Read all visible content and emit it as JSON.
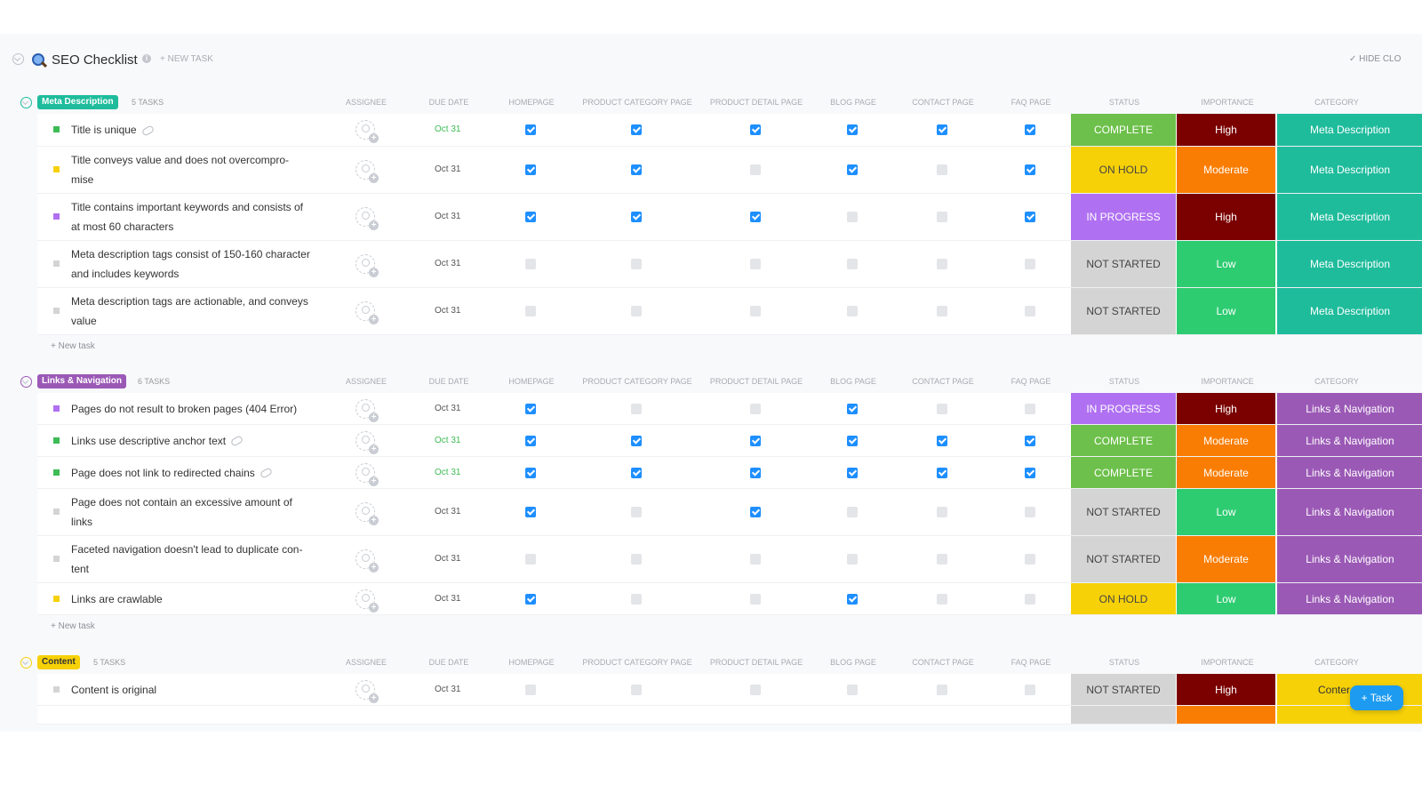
{
  "app": {
    "title": "SEO Checklist",
    "new_task": "+ NEW TASK",
    "hide_closed": "✓ HIDE CLO",
    "info": "i"
  },
  "columns": [
    "ASSIGNEE",
    "DUE DATE",
    "HOMEPAGE",
    "PRODUCT CATEGORY PAGE",
    "PRODUCT DETAIL PAGE",
    "BLOG PAGE",
    "CONTACT PAGE",
    "FAQ PAGE",
    "STATUS",
    "IMPORTANCE",
    "CATEGORY"
  ],
  "colors": {
    "complete": "#6dc04b",
    "on_hold": "#f6d108",
    "in_progress": "#b070f2",
    "not_started": "#d4d4d4",
    "high": "#7b0000",
    "moderate": "#fa7d03",
    "low": "#2ecc71",
    "meta": "#1fbc9c",
    "links": "#9b59b6",
    "content": "#f6d108"
  },
  "groups": [
    {
      "name": "Meta Description",
      "count": "5 TASKS",
      "color": "#1fbc9c",
      "tasks": [
        {
          "l1": "Title is unique",
          "l2": "",
          "clip": true,
          "due": "Oct 31",
          "due_green": true,
          "checks": [
            1,
            1,
            1,
            1,
            1,
            1
          ],
          "status": "COMPLETE",
          "status_key": "complete",
          "importance": "High",
          "imp_key": "high",
          "category": "Meta Description",
          "dot": "#3dbb56"
        },
        {
          "l1": "Title conveys value and does not overcompro-",
          "l2": "mise",
          "clip": false,
          "due": "Oct 31",
          "due_green": false,
          "checks": [
            1,
            1,
            0,
            1,
            0,
            1
          ],
          "status": "ON HOLD",
          "status_key": "on_hold",
          "importance": "Moderate",
          "imp_key": "moderate",
          "category": "Meta Description",
          "dot": "#f6d108"
        },
        {
          "l1": "Title contains important keywords and consists of",
          "l2": "at most 60 characters",
          "clip": false,
          "due": "Oct 31",
          "due_green": false,
          "checks": [
            1,
            1,
            1,
            0,
            0,
            1
          ],
          "status": "IN PROGRESS",
          "status_key": "in_progress",
          "importance": "High",
          "imp_key": "high",
          "category": "Meta Description",
          "dot": "#b070f2"
        },
        {
          "l1": "Meta description tags consist of 150-160 character",
          "l2": "and includes keywords",
          "clip": false,
          "due": "Oct 31",
          "due_green": false,
          "checks": [
            0,
            0,
            0,
            0,
            0,
            0
          ],
          "status": "NOT STARTED",
          "status_key": "not_started",
          "importance": "Low",
          "imp_key": "low",
          "category": "Meta Description",
          "dot": "#d4d4d4"
        },
        {
          "l1": "Meta description tags are actionable, and conveys",
          "l2": "value",
          "clip": false,
          "due": "Oct 31",
          "due_green": false,
          "checks": [
            0,
            0,
            0,
            0,
            0,
            0
          ],
          "status": "NOT STARTED",
          "status_key": "not_started",
          "importance": "Low",
          "imp_key": "low",
          "category": "Meta Description",
          "dot": "#d4d4d4"
        }
      ],
      "new_task": "+ New task"
    },
    {
      "name": "Links & Navigation",
      "count": "6 TASKS",
      "color": "#9b59b6",
      "tasks": [
        {
          "l1": "Pages do not result to broken pages (404 Error)",
          "l2": "",
          "clip": false,
          "due": "Oct 31",
          "due_green": false,
          "checks": [
            1,
            0,
            0,
            1,
            0,
            0
          ],
          "status": "IN PROGRESS",
          "status_key": "in_progress",
          "importance": "High",
          "imp_key": "high",
          "category": "Links & Navigation",
          "dot": "#b070f2"
        },
        {
          "l1": "Links use descriptive anchor text",
          "l2": "",
          "clip": true,
          "due": "Oct 31",
          "due_green": true,
          "checks": [
            1,
            1,
            1,
            1,
            1,
            1
          ],
          "status": "COMPLETE",
          "status_key": "complete",
          "importance": "Moderate",
          "imp_key": "moderate",
          "category": "Links & Navigation",
          "dot": "#3dbb56"
        },
        {
          "l1": "Page does not link to redirected chains",
          "l2": "",
          "clip": true,
          "due": "Oct 31",
          "due_green": true,
          "checks": [
            1,
            1,
            1,
            1,
            1,
            1
          ],
          "status": "COMPLETE",
          "status_key": "complete",
          "importance": "Moderate",
          "imp_key": "moderate",
          "category": "Links & Navigation",
          "dot": "#3dbb56"
        },
        {
          "l1": "Page does not contain an excessive amount of",
          "l2": "links",
          "clip": false,
          "due": "Oct 31",
          "due_green": false,
          "checks": [
            1,
            0,
            1,
            0,
            0,
            0
          ],
          "status": "NOT STARTED",
          "status_key": "not_started",
          "importance": "Low",
          "imp_key": "low",
          "category": "Links & Navigation",
          "dot": "#d4d4d4"
        },
        {
          "l1": "Faceted navigation doesn't lead to duplicate con-",
          "l2": "tent",
          "clip": false,
          "due": "Oct 31",
          "due_green": false,
          "checks": [
            0,
            0,
            0,
            0,
            0,
            0
          ],
          "status": "NOT STARTED",
          "status_key": "not_started",
          "importance": "Moderate",
          "imp_key": "moderate",
          "category": "Links & Navigation",
          "dot": "#d4d4d4"
        },
        {
          "l1": "Links are crawlable",
          "l2": "",
          "clip": false,
          "due": "Oct 31",
          "due_green": false,
          "checks": [
            1,
            0,
            0,
            1,
            0,
            0
          ],
          "status": "ON HOLD",
          "status_key": "on_hold",
          "importance": "Low",
          "imp_key": "low",
          "category": "Links & Navigation",
          "dot": "#f6d108"
        }
      ],
      "new_task": "+ New task"
    },
    {
      "name": "Content",
      "count": "5 TASKS",
      "color": "#f6d108",
      "tasks": [
        {
          "l1": "Content is original",
          "l2": "",
          "clip": false,
          "due": "Oct 31",
          "due_green": false,
          "checks": [
            0,
            0,
            0,
            0,
            0,
            0
          ],
          "status": "NOT STARTED",
          "status_key": "not_started",
          "importance": "High",
          "imp_key": "high",
          "category": "Conter",
          "dot": "#d4d4d4"
        }
      ],
      "new_task": ""
    }
  ],
  "fab_label": "+ Task"
}
